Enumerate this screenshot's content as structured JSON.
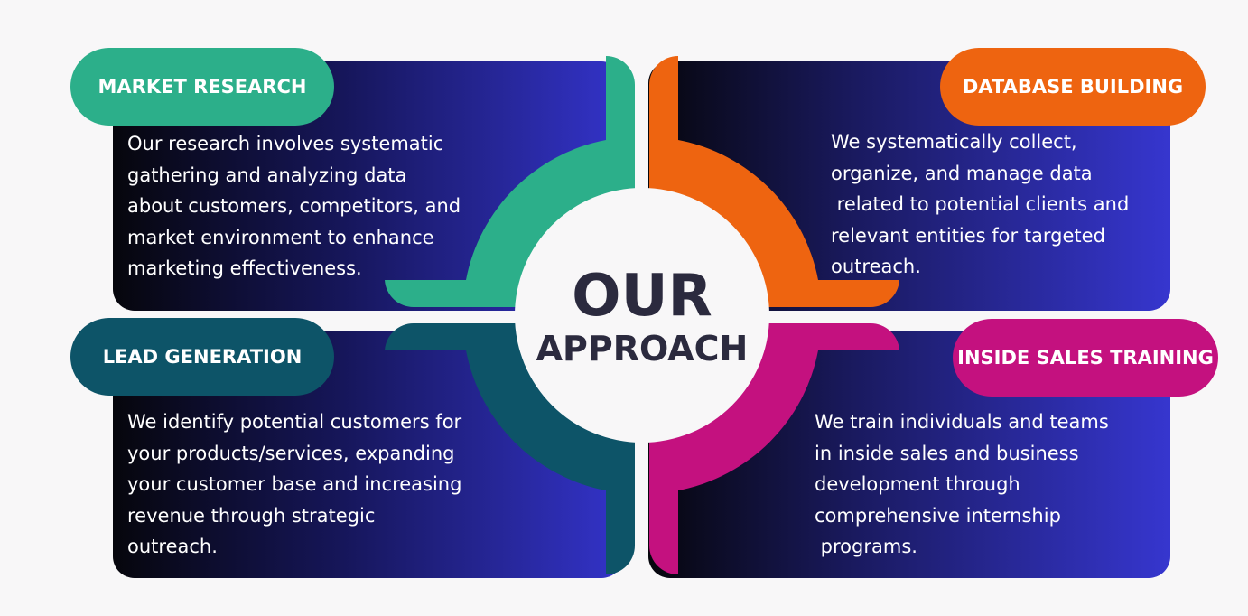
{
  "center": {
    "title": "OUR",
    "subtitle": "APPROACH"
  },
  "quadrants": [
    {
      "label": "MARKET RESEARCH",
      "color": "#2caf8a",
      "description": "Our research involves systematic\ngathering and analyzing data\nabout customers, competitors, and\nmarket environment to enhance\nmarketing effectiveness."
    },
    {
      "label": "DATABASE BUILDING",
      "color": "#ee6410",
      "description": "We systematically collect,\norganize, and manage data\n related to potential clients and\nrelevant entities for targeted\noutreach."
    },
    {
      "label": "LEAD GENERATION",
      "color": "#0d5468",
      "description": "We identify potential customers for\nyour products/services, expanding\nyour customer base and increasing\nrevenue through strategic\noutreach."
    },
    {
      "label": "INSIDE SALES TRAINING",
      "color": "#c4117f",
      "description": "We train individuals and teams\nin inside sales and business\ndevelopment through\ncomprehensive internship\n programs."
    }
  ],
  "colors": {
    "background": "#f8f7f8",
    "card_gradient_start": "#06060c",
    "card_gradient_end": "#3333c9",
    "title_text": "#2b2a3e"
  }
}
